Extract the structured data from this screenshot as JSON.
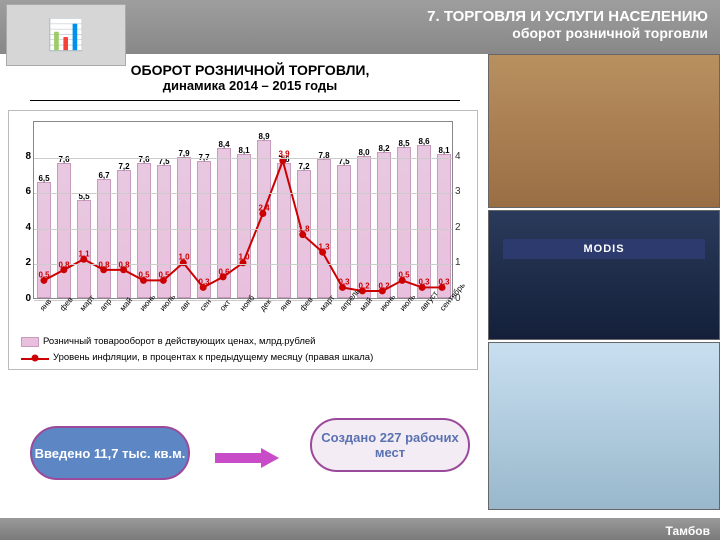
{
  "header": {
    "title": "7. ТОРГОВЛЯ И УСЛУГИ НАСЕЛЕНИЮ",
    "sub": "оборот розничной торговли"
  },
  "footer": {
    "city": "Тамбов"
  },
  "corner_caption": "",
  "chart": {
    "title_line1": "ОБОРОТ РОЗНИЧНОЙ ТОРГОВЛИ,",
    "title_line2": "динамика 2014 – 2015 годы",
    "legend_bars": "Розничный товарооборот в действующих ценах, млрд.рублей",
    "legend_line": "Уровень инфляции, в процентах к предыдущему месяцу (правая шкала)",
    "bar_color": "#e8c0dd",
    "bar_border": "#c89abc",
    "line_color": "#cc0000",
    "grid_color": "#cccccc",
    "left_axis": {
      "min": 0,
      "max": 8,
      "ticks": [
        0,
        2,
        4,
        6,
        8
      ]
    },
    "right_axis": {
      "min": 0,
      "max": 4,
      "ticks": [
        0,
        1,
        2,
        3,
        4
      ]
    },
    "months": [
      "янв",
      "фев",
      "март",
      "апр",
      "май",
      "июнь",
      "июль",
      "авг",
      "сен",
      "окт",
      "нояб",
      "дек",
      "янв",
      "фев",
      "март",
      "апрель",
      "май",
      "июнь",
      "июль",
      "август",
      "сентябрь"
    ],
    "bars": [
      6.5,
      7.6,
      5.5,
      6.7,
      7.2,
      7.6,
      7.5,
      7.9,
      7.7,
      8.4,
      8.1,
      8.9,
      7.6,
      7.2,
      7.8,
      7.5,
      8.0,
      8.2,
      8.5,
      8.6,
      8.1
    ],
    "line": [
      0.5,
      0.8,
      1.1,
      0.8,
      0.8,
      0.5,
      0.5,
      1.0,
      0.3,
      0.6,
      1.0,
      2.4,
      3.9,
      1.8,
      1.3,
      0.3,
      0.2,
      0.2,
      0.5,
      0.3,
      0.3
    ]
  },
  "bubbles": {
    "left": "Введено 11,7 тыс. кв.м.",
    "right": "Создано 227 рабочих мест"
  },
  "photos": {
    "modis": "MODIS"
  }
}
